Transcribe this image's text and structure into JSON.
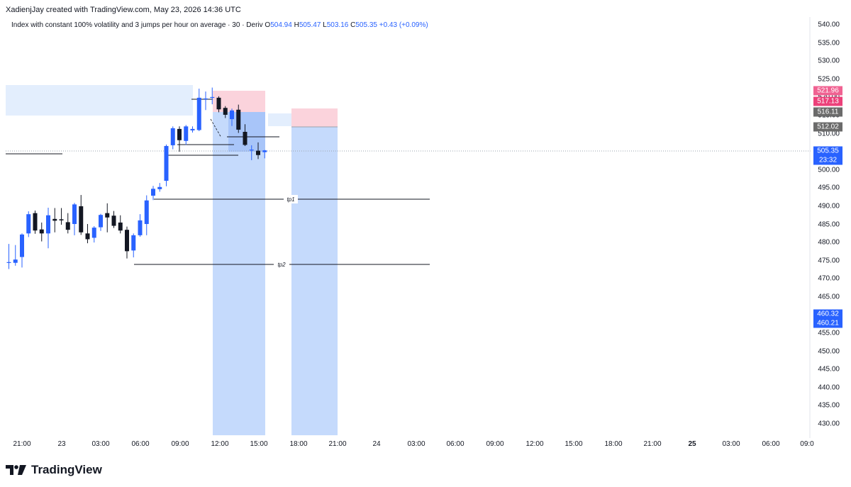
{
  "header": {
    "credit": "XadienjJay created with TradingView.com, May 23, 2026 14:36 UTC"
  },
  "legend": {
    "symbol": "Index with constant 100% volatility and 3 jumps per hour on average · 30 · Deriv",
    "o_label": "O",
    "o": "504.94",
    "h_label": "H",
    "h": "505.47",
    "l_label": "L",
    "l": "503.16",
    "c_label": "C",
    "c": "505.35",
    "change": "+0.43 (+0.09%)"
  },
  "colors": {
    "up": "#2962ff",
    "down": "#131722",
    "target_zone": "#bbd3fb",
    "stop_zone": "#fbd3dc",
    "supply_zone": "#e3eefd"
  },
  "price_axis": {
    "ticks": [
      "540.00",
      "535.00",
      "530.00",
      "525.00",
      "520.00",
      "515.00",
      "510.00",
      "505.00",
      "500.00",
      "495.00",
      "490.00",
      "485.00",
      "480.00",
      "475.00",
      "470.00",
      "465.00",
      "460.00",
      "455.00",
      "450.00",
      "445.00",
      "440.00",
      "435.00",
      "430.00"
    ],
    "badges": [
      {
        "text": "521.96",
        "color": "#f06292"
      },
      {
        "text": "517.13",
        "color": "#ec407a"
      },
      {
        "text": "516.11",
        "color": "#6b6b6b"
      },
      {
        "text": "512.02",
        "color": "#6b6b6b"
      },
      {
        "text": "505.35",
        "color": "#2962ff"
      },
      {
        "text": "23:32",
        "color": "#2962ff"
      },
      {
        "text": "460.32",
        "color": "#2962ff"
      },
      {
        "text": "460.21",
        "color": "#2962ff"
      }
    ]
  },
  "time_axis": {
    "ticks": [
      "21:00",
      "23",
      "03:00",
      "06:00",
      "09:00",
      "12:00",
      "15:00",
      "18:00",
      "21:00",
      "24",
      "03:00",
      "06:00",
      "09:00",
      "12:00",
      "15:00",
      "18:00",
      "21:00",
      "25",
      "03:00",
      "06:00",
      "09:0"
    ]
  },
  "annotations": {
    "tp1": "tp1",
    "tp2": "tp2"
  },
  "footer": {
    "brand": "TradingView",
    "logo_icon": "tradingview-logo-icon"
  },
  "chart_data": {
    "type": "candlestick",
    "interval": "30",
    "ylim": [
      428,
      542
    ],
    "candles": [
      {
        "o": 474.4,
        "h": 479.6,
        "l": 472.7,
        "c": 474.6
      },
      {
        "o": 474.4,
        "h": 479.3,
        "l": 473.6,
        "c": 475.3
      },
      {
        "o": 476.0,
        "h": 482.5,
        "l": 473.1,
        "c": 482.2
      },
      {
        "o": 482.5,
        "h": 488.6,
        "l": 481.5,
        "c": 487.8
      },
      {
        "o": 488.1,
        "h": 488.8,
        "l": 482.4,
        "c": 483.3
      },
      {
        "o": 483.6,
        "h": 485.5,
        "l": 480.3,
        "c": 482.5
      },
      {
        "o": 482.5,
        "h": 489.6,
        "l": 478.4,
        "c": 487.5
      },
      {
        "o": 486.5,
        "h": 489.5,
        "l": 482.8,
        "c": 486.0
      },
      {
        "o": 486.4,
        "h": 489.5,
        "l": 484.9,
        "c": 486.1
      },
      {
        "o": 485.6,
        "h": 488.1,
        "l": 482.5,
        "c": 483.5
      },
      {
        "o": 485.1,
        "h": 490.9,
        "l": 482.0,
        "c": 490.5
      },
      {
        "o": 490.0,
        "h": 493.1,
        "l": 482.1,
        "c": 482.8
      },
      {
        "o": 482.5,
        "h": 485.1,
        "l": 479.8,
        "c": 480.9
      },
      {
        "o": 481.3,
        "h": 484.5,
        "l": 480.0,
        "c": 484.1
      },
      {
        "o": 484.2,
        "h": 487.9,
        "l": 483.2,
        "c": 487.6
      },
      {
        "o": 488.1,
        "h": 490.8,
        "l": 482.8,
        "c": 486.9
      },
      {
        "o": 487.4,
        "h": 488.7,
        "l": 484.0,
        "c": 484.6
      },
      {
        "o": 485.5,
        "h": 487.5,
        "l": 482.5,
        "c": 483.3
      },
      {
        "o": 483.5,
        "h": 484.4,
        "l": 475.6,
        "c": 477.6
      },
      {
        "o": 477.8,
        "h": 482.5,
        "l": 475.9,
        "c": 482.0
      },
      {
        "o": 482.0,
        "h": 487.8,
        "l": 481.6,
        "c": 486.1
      },
      {
        "o": 485.1,
        "h": 493.0,
        "l": 482.0,
        "c": 491.6
      },
      {
        "o": 492.9,
        "h": 495.6,
        "l": 491.7,
        "c": 494.8
      },
      {
        "o": 494.7,
        "h": 496.4,
        "l": 494.0,
        "c": 495.3
      },
      {
        "o": 497.0,
        "h": 507.0,
        "l": 495.5,
        "c": 506.6
      },
      {
        "o": 506.8,
        "h": 512.0,
        "l": 505.7,
        "c": 511.5
      },
      {
        "o": 511.3,
        "h": 512.0,
        "l": 505.0,
        "c": 508.2
      },
      {
        "o": 508.0,
        "h": 512.4,
        "l": 506.9,
        "c": 512.0
      },
      {
        "o": 510.9,
        "h": 512.0,
        "l": 510.3,
        "c": 511.3
      },
      {
        "o": 511.0,
        "h": 522.4,
        "l": 510.7,
        "c": 519.9
      },
      {
        "o": 519.6,
        "h": 521.6,
        "l": 516.5,
        "c": 519.7
      },
      {
        "o": 519.9,
        "h": 522.7,
        "l": 518.1,
        "c": 520.1
      },
      {
        "o": 519.9,
        "h": 520.3,
        "l": 515.9,
        "c": 516.7
      },
      {
        "o": 517.1,
        "h": 517.6,
        "l": 514.3,
        "c": 515.2
      },
      {
        "o": 514.0,
        "h": 516.9,
        "l": 512.1,
        "c": 516.4
      },
      {
        "o": 516.6,
        "h": 518.0,
        "l": 510.2,
        "c": 511.1
      },
      {
        "o": 510.5,
        "h": 512.6,
        "l": 506.6,
        "c": 506.9
      },
      {
        "o": 505.4,
        "h": 506.8,
        "l": 502.7,
        "c": 505.6
      },
      {
        "o": 505.3,
        "h": 507.6,
        "l": 503.0,
        "c": 504.1
      },
      {
        "o": 504.9,
        "h": 505.5,
        "l": 503.2,
        "c": 505.4
      }
    ],
    "levels": [
      {
        "name": "tp1",
        "price": 492.2
      },
      {
        "name": "tp2",
        "price": 473.9
      }
    ]
  }
}
